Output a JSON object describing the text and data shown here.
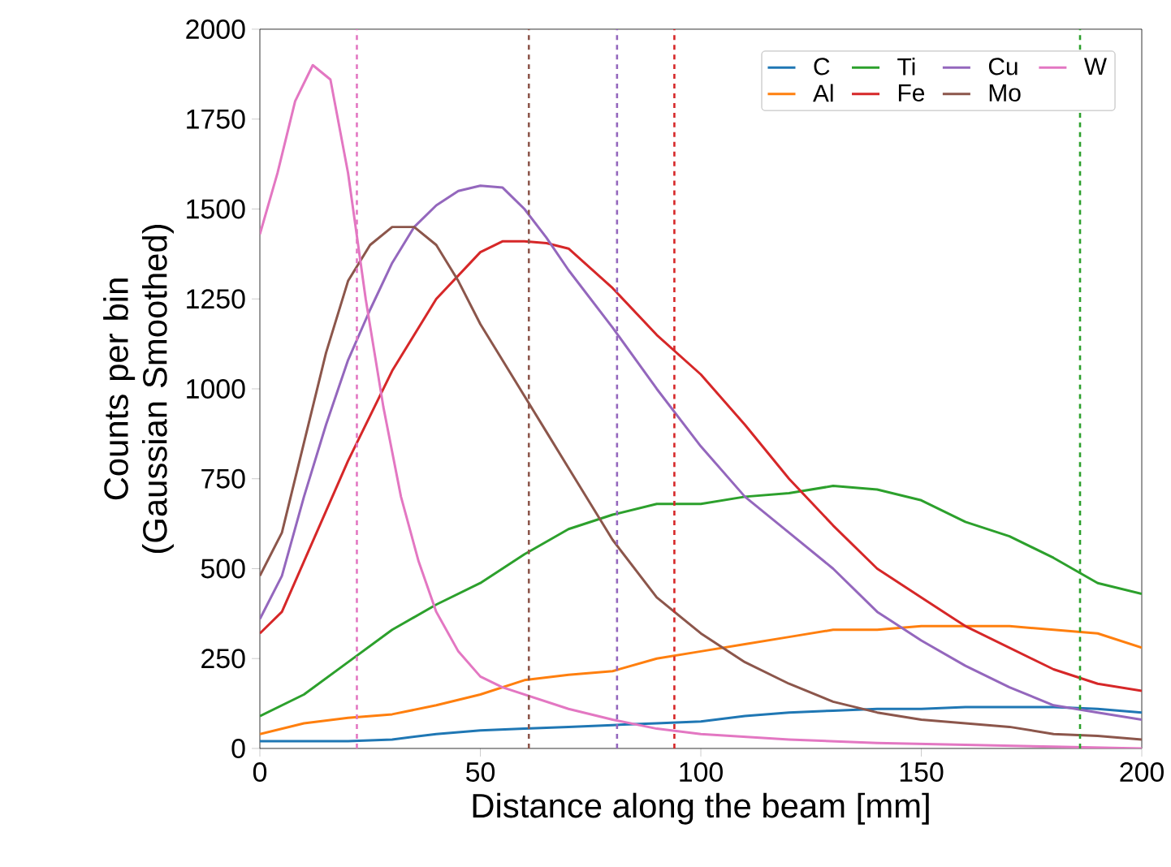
{
  "chart_data": {
    "type": "line",
    "xlabel": "Distance along the beam [mm]",
    "ylabel": "Counts per bin (Gaussian Smoothed)",
    "xlim": [
      0,
      200
    ],
    "xticks": [
      0,
      50,
      100,
      150,
      200
    ],
    "ylim": [
      0,
      2000
    ],
    "yticks": [
      0,
      250,
      500,
      750,
      1000,
      1250,
      1500,
      1750,
      2000
    ],
    "grid": false,
    "legend": "top right",
    "marker": "none",
    "line_style": "solid",
    "series": [
      {
        "name": "C",
        "color": "#1f77b4",
        "x": [
          0,
          10,
          20,
          30,
          40,
          50,
          60,
          70,
          80,
          90,
          100,
          110,
          120,
          130,
          140,
          150,
          160,
          170,
          180,
          190,
          200
        ],
        "values": [
          20,
          20,
          20,
          25,
          40,
          50,
          55,
          60,
          65,
          70,
          75,
          90,
          100,
          105,
          110,
          110,
          115,
          115,
          115,
          110,
          100
        ]
      },
      {
        "name": "Al",
        "color": "#ff7f0e",
        "x": [
          0,
          10,
          20,
          30,
          40,
          50,
          60,
          70,
          80,
          90,
          100,
          110,
          120,
          130,
          140,
          150,
          160,
          170,
          180,
          190,
          200
        ],
        "values": [
          40,
          70,
          85,
          95,
          120,
          150,
          190,
          205,
          215,
          250,
          270,
          290,
          310,
          330,
          330,
          340,
          340,
          340,
          330,
          320,
          280
        ]
      },
      {
        "name": "Ti",
        "color": "#2ca02c",
        "x": [
          0,
          10,
          20,
          30,
          40,
          50,
          60,
          70,
          80,
          90,
          100,
          110,
          120,
          130,
          140,
          150,
          160,
          170,
          180,
          190,
          200
        ],
        "values": [
          90,
          150,
          240,
          330,
          400,
          460,
          540,
          610,
          650,
          680,
          680,
          700,
          710,
          730,
          720,
          690,
          630,
          590,
          530,
          460,
          430
        ]
      },
      {
        "name": "Fe",
        "color": "#d62728",
        "x": [
          0,
          5,
          10,
          20,
          30,
          40,
          50,
          55,
          60,
          65,
          70,
          80,
          90,
          100,
          110,
          120,
          130,
          140,
          150,
          160,
          170,
          180,
          190,
          200
        ],
        "values": [
          320,
          380,
          520,
          800,
          1050,
          1250,
          1380,
          1410,
          1410,
          1405,
          1390,
          1280,
          1150,
          1040,
          900,
          750,
          620,
          500,
          420,
          340,
          280,
          220,
          180,
          160
        ]
      },
      {
        "name": "Cu",
        "color": "#9467bd",
        "x": [
          0,
          5,
          10,
          15,
          20,
          25,
          30,
          35,
          40,
          45,
          50,
          55,
          60,
          65,
          70,
          80,
          90,
          100,
          110,
          120,
          130,
          140,
          150,
          160,
          170,
          180,
          190,
          200
        ],
        "values": [
          360,
          480,
          700,
          900,
          1080,
          1220,
          1350,
          1450,
          1510,
          1550,
          1565,
          1560,
          1500,
          1420,
          1330,
          1170,
          1000,
          840,
          700,
          600,
          500,
          380,
          300,
          230,
          170,
          120,
          100,
          80
        ]
      },
      {
        "name": "Mo",
        "color": "#8c564b",
        "x": [
          0,
          5,
          10,
          15,
          20,
          25,
          30,
          35,
          40,
          45,
          50,
          55,
          60,
          65,
          70,
          80,
          90,
          100,
          110,
          120,
          130,
          140,
          150,
          160,
          170,
          180,
          190,
          200
        ],
        "values": [
          480,
          600,
          850,
          1100,
          1300,
          1400,
          1450,
          1450,
          1400,
          1300,
          1180,
          1080,
          980,
          880,
          780,
          580,
          420,
          320,
          240,
          180,
          130,
          100,
          80,
          70,
          60,
          40,
          35,
          25
        ]
      },
      {
        "name": "W",
        "color": "#e377c2",
        "x": [
          0,
          4,
          8,
          12,
          16,
          20,
          24,
          28,
          32,
          36,
          40,
          45,
          50,
          55,
          60,
          70,
          80,
          90,
          100,
          120,
          140,
          160,
          180,
          200
        ],
        "values": [
          1430,
          1600,
          1800,
          1900,
          1860,
          1600,
          1250,
          950,
          700,
          520,
          380,
          270,
          200,
          170,
          150,
          110,
          80,
          55,
          40,
          25,
          15,
          10,
          5,
          0
        ]
      }
    ],
    "ref_lines": [
      {
        "axis": "x",
        "value": 22,
        "color": "#e377c2",
        "line_style": "dashed"
      },
      {
        "axis": "x",
        "value": 61,
        "color": "#8c564b",
        "line_style": "dashed"
      },
      {
        "axis": "x",
        "value": 81,
        "color": "#9467bd",
        "line_style": "dashed"
      },
      {
        "axis": "x",
        "value": 94,
        "color": "#d62728",
        "line_style": "dashed"
      },
      {
        "axis": "x",
        "value": 186,
        "color": "#2ca02c",
        "line_style": "dashed"
      }
    ]
  }
}
